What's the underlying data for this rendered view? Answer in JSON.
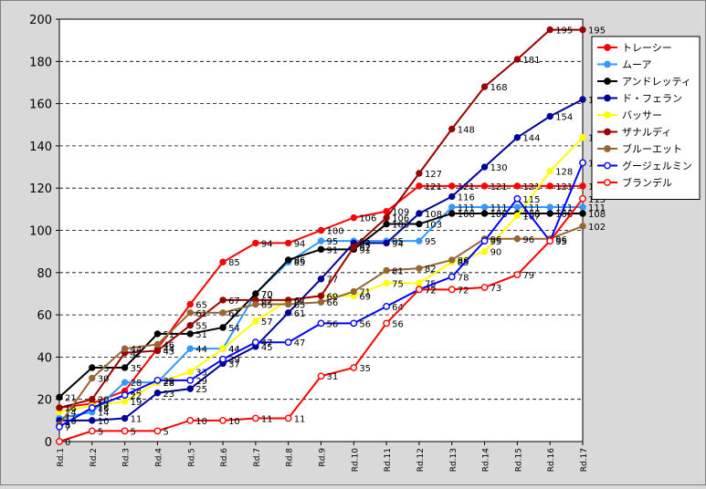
{
  "chart_data": {
    "type": "line",
    "title": "",
    "xlabel": "",
    "ylabel": "",
    "ylim": [
      0,
      200
    ],
    "yticks": [
      0,
      20,
      40,
      60,
      80,
      100,
      120,
      140,
      160,
      180,
      200
    ],
    "grid": true,
    "legend_position": "right",
    "categories": [
      "Rd.1",
      "Rd.2",
      "Rd.3",
      "Rd.4",
      "Rd.5",
      "Rd.6",
      "Rd.7",
      "Rd.8",
      "Rd.9",
      "Rd.10",
      "Rd.11",
      "Rd.12",
      "Rd.13",
      "Rd.14",
      "Rd.15",
      "Rd.16",
      "Rd.17"
    ],
    "series": [
      {
        "name": "トレーシー",
        "color": "#ff0000",
        "marker": "filled",
        "label_last_only": false,
        "values": [
          16,
          18,
          24,
          44,
          65,
          85,
          94,
          94,
          100,
          106,
          109,
          121,
          121,
          121,
          121,
          121,
          121
        ]
      },
      {
        "name": "ムーア",
        "color": "#3399ff",
        "marker": "filled",
        "label_last_only": false,
        "values": [
          11,
          14,
          28,
          28,
          44,
          44,
          70,
          85,
          95,
          95,
          95,
          95,
          111,
          111,
          111,
          111,
          111
        ]
      },
      {
        "name": "アンドレッティ",
        "color": "#000000",
        "marker": "filled",
        "label_last_only": false,
        "values": [
          21,
          35,
          35,
          51,
          51,
          54,
          70,
          86,
          91,
          91,
          103,
          103,
          108,
          108,
          108,
          108,
          108
        ]
      },
      {
        "name": "ド・フェラン",
        "color": "#000099",
        "marker": "filled",
        "label_last_only": false,
        "values": [
          10,
          10,
          11,
          23,
          25,
          37,
          45,
          61,
          77,
          94,
          94,
          108,
          116,
          130,
          144,
          154,
          162
        ]
      },
      {
        "name": "バッサー",
        "color": "#ffff00",
        "marker": "filled",
        "label_last_only": false,
        "values": [
          14,
          17,
          19,
          28,
          33,
          44,
          57,
          67,
          69,
          69,
          75,
          75,
          85,
          90,
          107,
          128,
          144
        ]
      },
      {
        "name": "ザナルディ",
        "color": "#990000",
        "marker": "filled",
        "label_last_only": false,
        "values": [
          16,
          20,
          42,
          43,
          55,
          67,
          67,
          67,
          69,
          92,
          106,
          127,
          148,
          168,
          181,
          195,
          195
        ]
      },
      {
        "name": "ブルーエット",
        "color": "#996633",
        "marker": "filled",
        "label_last_only": false,
        "values": [
          8,
          30,
          44,
          46,
          61,
          61,
          65,
          65,
          66,
          71,
          81,
          82,
          86,
          96,
          96,
          96,
          102
        ]
      },
      {
        "name": "グージェルミン",
        "color": "#0000ff",
        "marker": "open",
        "label_last_only": false,
        "values": [
          7,
          16,
          22,
          29,
          29,
          39,
          47,
          47,
          56,
          56,
          64,
          72,
          78,
          95,
          115,
          95,
          132
        ]
      },
      {
        "name": "ブランデル",
        "color": "#ff0000",
        "marker": "open",
        "label_last_only": false,
        "values": [
          0,
          5,
          5,
          5,
          10,
          10,
          11,
          11,
          31,
          35,
          56,
          72,
          72,
          73,
          79,
          95,
          115
        ]
      }
    ]
  }
}
